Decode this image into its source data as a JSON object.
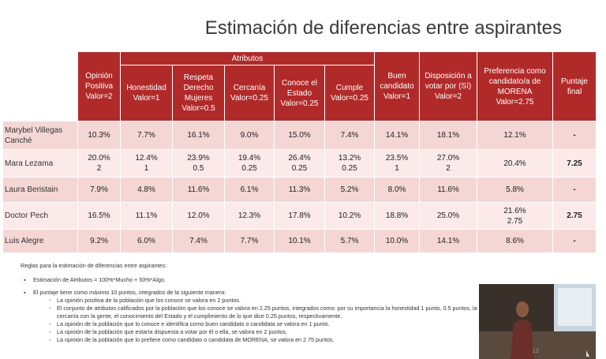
{
  "header": {
    "title": "Estimación de diferencias entre aspirantes"
  },
  "table": {
    "group_header": "Atributos",
    "columns": [
      "Opinión Positiva Valor=2",
      "Honestidad Valor=1",
      "Respeta Derecho Mujeres Valor=0.5",
      "Cercanía Valor=0.25",
      "Conoce el Estado Valor=0.25",
      "Cumple Valor=0.25",
      "Buen candidato Valor=1",
      "Disposición a votar por (Sí) Valor=2",
      "Preferencia como candidato/a de MORENA Valor=2.75",
      "Puntaje final"
    ],
    "rows": [
      {
        "name": "Marybel Villegas Canché",
        "cells": [
          "10.3%",
          "7.7%",
          "16.1%",
          "9.0%",
          "15.0%",
          "7.4%",
          "14.1%",
          "18.1%",
          "12.1%",
          "-"
        ]
      },
      {
        "name": "Mara Lezama",
        "cells": [
          "20.0%\n2",
          "12.4%\n1",
          "23.9%\n0.5",
          "19.4%\n0.25",
          "26.4%\n0.25",
          "13.2%\n0.25",
          "23.5%\n1",
          "27.0%\n2",
          "20.4%",
          "7.25"
        ]
      },
      {
        "name": "Laura Beristain",
        "cells": [
          "7.9%",
          "4.8%",
          "11.6%",
          "6.1%",
          "11.3%",
          "5.2%",
          "8.0%",
          "11.6%",
          "5.8%",
          "-"
        ]
      },
      {
        "name": "Doctor Pech",
        "cells": [
          "16.5%",
          "11.1%",
          "12.0%",
          "12.3%",
          "17.8%",
          "10.2%",
          "18.8%",
          "25.0%",
          "21.6%\n2.75",
          "2.75"
        ]
      },
      {
        "name": "Luis Alegre",
        "cells": [
          "9.2%",
          "6.0%",
          "7.4%",
          "7.7%",
          "10.1%",
          "5.7%",
          "10.0%",
          "14.1%",
          "8.6%",
          "-"
        ]
      }
    ]
  },
  "notes": {
    "heading": "Reglas para la estimación de diferencias entre aspirantes:",
    "bullets": [
      {
        "text": "Estimación de Atributos = 100%*Mucho + 50%*Algo.",
        "items": []
      },
      {
        "text": "El puntaje tiene como máximo 10 puntos, integrados de la siguiente manera:",
        "items": [
          "La opinión positiva de la población que los conoce se valora en 2 puntos.",
          "El conjunto de atributos calificados por la población que los conoce se valora en 2.25 puntos, integrados como: por su importancia la honestidad 1 punto, 0.5 puntos, la cercanía con la gente, el conocimiento del Estado y el cumplimiento de lo que dice 0.25 puntos, respectivamente.",
          "La opinión de la población que lo conoce e identifica como buen candidato o candidata se valora en 1 punto.",
          "La opinión de la población que estaría dispuesta a votar por él o ella, se valora en 2 puntos.",
          "La opinión de la población que lo prefiere como candidato o candidata de MORENA, se valora en 2.75 puntos."
        ]
      }
    ]
  },
  "page_number": "13"
}
